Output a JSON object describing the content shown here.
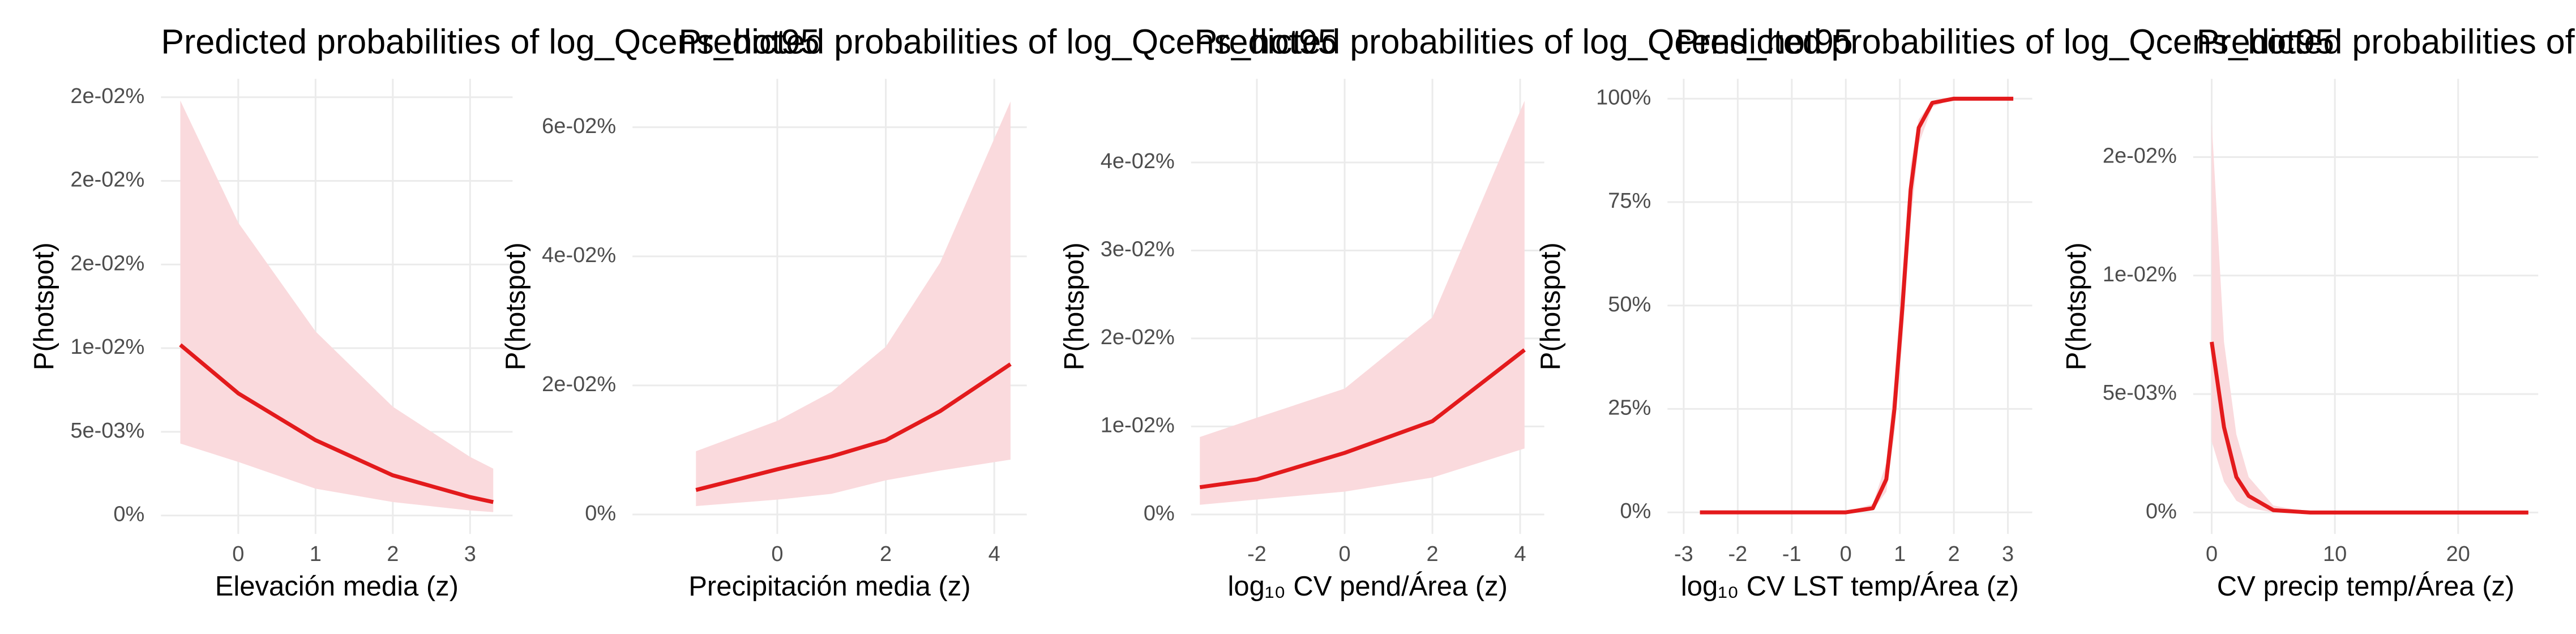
{
  "chart_data": [
    {
      "type": "line",
      "title": "Predicted probabilities of log_Qcens_hot95",
      "xlabel": "Elevación media (z)",
      "ylabel": "P(hotspot)",
      "x": [
        -0.75,
        0,
        1,
        2,
        3,
        3.3
      ],
      "values": [
        0.0102,
        0.0073,
        0.0045,
        0.0024,
        0.0011,
        0.0008
      ],
      "upper": [
        0.0248,
        0.0175,
        0.011,
        0.0065,
        0.0035,
        0.0028
      ],
      "lower": [
        0.0043,
        0.0032,
        0.0016,
        0.0008,
        0.0003,
        0.0002
      ],
      "color": "#e31a1c",
      "band_color": "#fadadd",
      "xlim": [
        -1.0,
        3.55
      ],
      "xticks": [
        0,
        1,
        2,
        3
      ],
      "ylim": [
        -0.0011,
        0.0261
      ],
      "yticks": [
        {
          "value": 0,
          "label": "0%"
        },
        {
          "value": 0.005,
          "label": "5e-03%"
        },
        {
          "value": 0.01,
          "label": "1e-02%"
        },
        {
          "value": 0.015,
          "label": "2e-02%"
        },
        {
          "value": 0.02,
          "label": "2e-02%"
        },
        {
          "value": 0.025,
          "label": "2e-02%"
        }
      ],
      "grid": true
    },
    {
      "type": "line",
      "title": "Predicted probabilities of log_Qcens_hot95",
      "xlabel": "Precipitación media (z)",
      "ylabel": "P(hotspot)",
      "x": [
        -1.5,
        0,
        1,
        2,
        3,
        4.3
      ],
      "values": [
        0.0038,
        0.007,
        0.009,
        0.0115,
        0.016,
        0.0233
      ],
      "upper": [
        0.0098,
        0.0145,
        0.019,
        0.026,
        0.039,
        0.064
      ],
      "lower": [
        0.0013,
        0.0023,
        0.0032,
        0.0053,
        0.0068,
        0.0085
      ],
      "color": "#e31a1c",
      "band_color": "#fadadd",
      "xlim": [
        -2.67,
        4.6
      ],
      "xticks": [
        0,
        2,
        4
      ],
      "ylim": [
        -0.003,
        0.0675
      ],
      "yticks": [
        {
          "value": 0,
          "label": "0%"
        },
        {
          "value": 0.02,
          "label": "2e-02%"
        },
        {
          "value": 0.04,
          "label": "4e-02%"
        },
        {
          "value": 0.06,
          "label": "6e-02%"
        }
      ],
      "grid": true
    },
    {
      "type": "line",
      "title": "Predicted probabilities of log_Qcens_hot95",
      "xlabel": "log₁₀ CV pend/Área (z)",
      "ylabel": "P(hotspot)",
      "x": [
        -3.3,
        -2,
        0,
        2,
        4.1
      ],
      "values": [
        0.0031,
        0.004,
        0.007,
        0.0106,
        0.0187
      ],
      "upper": [
        0.0088,
        0.011,
        0.0143,
        0.0224,
        0.047
      ],
      "lower": [
        0.0011,
        0.0017,
        0.0026,
        0.0042,
        0.0075
      ],
      "color": "#e31a1c",
      "band_color": "#fadadd",
      "xlim": [
        -3.5,
        4.55
      ],
      "xticks": [
        -2,
        0,
        2,
        4
      ],
      "ylim": [
        -0.0022,
        0.0495
      ],
      "yticks": [
        {
          "value": 0,
          "label": "0%"
        },
        {
          "value": 0.01,
          "label": "1e-02%"
        },
        {
          "value": 0.02,
          "label": "2e-02%"
        },
        {
          "value": 0.03,
          "label": "3e-02%"
        },
        {
          "value": 0.04,
          "label": "4e-02%"
        }
      ],
      "grid": true
    },
    {
      "type": "line",
      "title": "Predicted probabilities of log_Qcens_hot95",
      "xlabel": "log₁₀ CV LST temp/Área (z)",
      "ylabel": "P(hotspot)",
      "x": [
        -2.7,
        0,
        0.5,
        0.75,
        0.9,
        1.05,
        1.2,
        1.35,
        1.6,
        2,
        3.1
      ],
      "values": [
        0,
        0,
        1,
        8,
        25,
        50,
        78,
        93,
        99,
        100,
        100
      ],
      "upper": [
        0,
        0.1,
        2,
        12,
        32,
        58,
        84,
        95,
        99.5,
        100,
        100
      ],
      "lower": [
        0,
        0,
        0.5,
        5,
        19,
        42,
        70,
        89,
        98,
        100,
        100
      ],
      "color": "#e31a1c",
      "band_color": "#fadadd",
      "xlim": [
        -3.3,
        3.45
      ],
      "xticks": [
        -3,
        -2,
        -1,
        0,
        1,
        2,
        3
      ],
      "ylim": [
        -5.2,
        104.8
      ],
      "yticks": [
        {
          "value": 0,
          "label": "0%"
        },
        {
          "value": 25,
          "label": "25%"
        },
        {
          "value": 50,
          "label": "50%"
        },
        {
          "value": 75,
          "label": "75%"
        },
        {
          "value": 100,
          "label": "100%"
        }
      ],
      "grid": true
    },
    {
      "type": "line",
      "title": "Predicted probabilities of log_Qcens_hot95",
      "xlabel": "CV precip temp/Área (z)",
      "ylabel": "P(hotspot)",
      "x": [
        0,
        1,
        2,
        3,
        5,
        8,
        25.7
      ],
      "values": [
        0.0072,
        0.0036,
        0.0015,
        0.0007,
        0.0001,
        0,
        0
      ],
      "upper": [
        0.0165,
        0.0072,
        0.0033,
        0.0015,
        0.0003,
        0,
        0
      ],
      "lower": [
        0.003,
        0.0013,
        0.0005,
        0.0002,
        0,
        0,
        0
      ],
      "color": "#e31a1c",
      "band_color": "#fadadd",
      "xlim": [
        -1.5,
        26.5
      ],
      "xticks": [
        0,
        10,
        20
      ],
      "ylim": [
        -0.0009,
        0.0183
      ],
      "yticks": [
        {
          "value": 0,
          "label": "0%"
        },
        {
          "value": 0.005,
          "label": "5e-03%"
        },
        {
          "value": 0.01,
          "label": "1e-02%"
        },
        {
          "value": 0.015,
          "label": "2e-02%"
        }
      ],
      "grid": true
    }
  ]
}
